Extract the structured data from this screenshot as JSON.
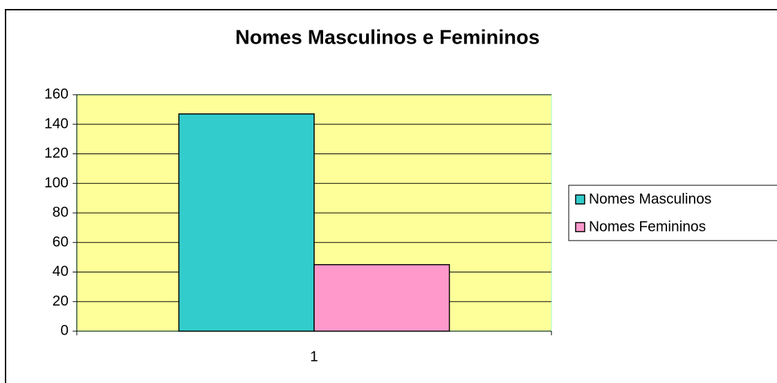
{
  "chart_data": {
    "type": "bar",
    "title": "Nomes Masculinos e Femininos",
    "categories": [
      "1"
    ],
    "series": [
      {
        "name": "Nomes Masculinos",
        "color": "#33cccc",
        "values": [
          147
        ]
      },
      {
        "name": "Nomes Femininos",
        "color": "#ff99cc",
        "values": [
          45
        ]
      }
    ],
    "ylim": [
      0,
      160
    ],
    "yticks": [
      0,
      20,
      40,
      60,
      80,
      100,
      120,
      140,
      160
    ],
    "grid": true,
    "plot_background": "#ffff99",
    "legend": "right"
  }
}
